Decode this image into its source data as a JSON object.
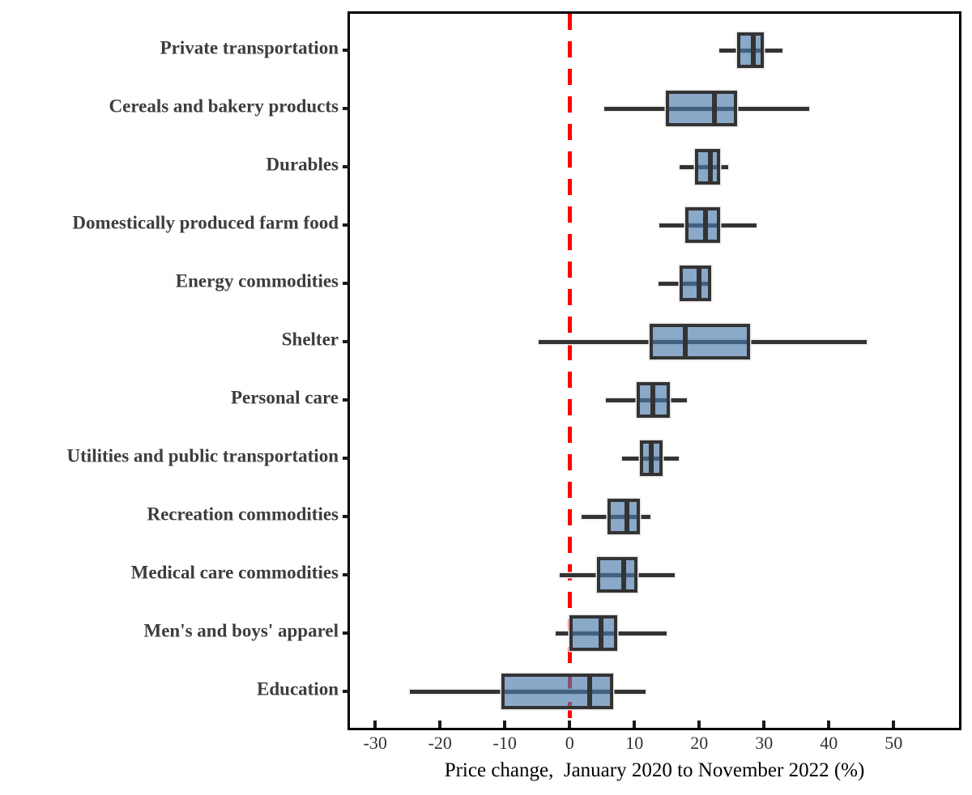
{
  "chart_data": {
    "type": "boxplot",
    "orientation": "horizontal",
    "title": "",
    "xlabel": "Price change,  January 2020 to November 2022 (%)",
    "ylabel": "",
    "x_ticks": [
      -30,
      -20,
      -10,
      0,
      10,
      20,
      30,
      40,
      50
    ],
    "xlim": [
      -33.9,
      60.1
    ],
    "grid": false,
    "zero_reference_line": {
      "x": 0,
      "color": "#ff0000",
      "style": "dashed"
    },
    "categories": [
      "Private transportation",
      "Cereals and bakery products",
      "Durables",
      "Domestically produced farm food",
      "Energy commodities",
      "Shelter",
      "Personal care",
      "Utilities and public transportation",
      "Recreation commodities",
      "Medical care commodities",
      "Men's and boys' apparel",
      "Education"
    ],
    "series": [
      {
        "name": "Private transportation",
        "whisker_low": 23.1,
        "q1": 26.4,
        "median": 28.3,
        "q3": 29.5,
        "whisker_high": 32.9
      },
      {
        "name": "Cereals and bakery products",
        "whisker_low": 5.3,
        "q1": 15.3,
        "median": 22.3,
        "q3": 25.4,
        "whisker_high": 37.0
      },
      {
        "name": "Durables",
        "whisker_low": 17.0,
        "q1": 19.8,
        "median": 21.7,
        "q3": 22.7,
        "whisker_high": 24.5
      },
      {
        "name": "Domestically produced farm food",
        "whisker_low": 13.8,
        "q1": 18.3,
        "median": 21.0,
        "q3": 22.7,
        "whisker_high": 28.8
      },
      {
        "name": "Energy commodities",
        "whisker_low": 13.7,
        "q1": 17.5,
        "median": 20.0,
        "q3": 21.3,
        "whisker_high": 21.9
      },
      {
        "name": "Shelter",
        "whisker_low": -4.8,
        "q1": 12.8,
        "median": 17.9,
        "q3": 27.4,
        "whisker_high": 45.8
      },
      {
        "name": "Personal care",
        "whisker_low": 5.6,
        "q1": 10.9,
        "median": 12.9,
        "q3": 15.0,
        "whisker_high": 18.1
      },
      {
        "name": "Utilities and public transportation",
        "whisker_low": 8.1,
        "q1": 11.3,
        "median": 12.6,
        "q3": 13.9,
        "whisker_high": 16.9
      },
      {
        "name": "Recreation commodities",
        "whisker_low": 1.9,
        "q1": 6.4,
        "median": 8.9,
        "q3": 10.3,
        "whisker_high": 12.5
      },
      {
        "name": "Medical care commodities",
        "whisker_low": -1.5,
        "q1": 4.7,
        "median": 8.3,
        "q3": 10.0,
        "whisker_high": 16.2
      },
      {
        "name": "Men's and boys' apparel",
        "whisker_low": -2.2,
        "q1": 0.5,
        "median": 4.8,
        "q3": 6.9,
        "whisker_high": 15.0
      },
      {
        "name": "Education",
        "whisker_low": -24.6,
        "q1": -10.0,
        "median": 3.1,
        "q3": 6.2,
        "whisker_high": 11.7
      }
    ],
    "colors": {
      "box_fill": "#8aa8c8",
      "box_border": "#333333",
      "whisker": "#333333",
      "median": "#333333",
      "zero_line": "#ff0000",
      "category_label": "#3d3d3d",
      "tick_label": "#333333",
      "axis_title": "#000000",
      "frame": "#000000",
      "background": "#ffffff"
    }
  }
}
